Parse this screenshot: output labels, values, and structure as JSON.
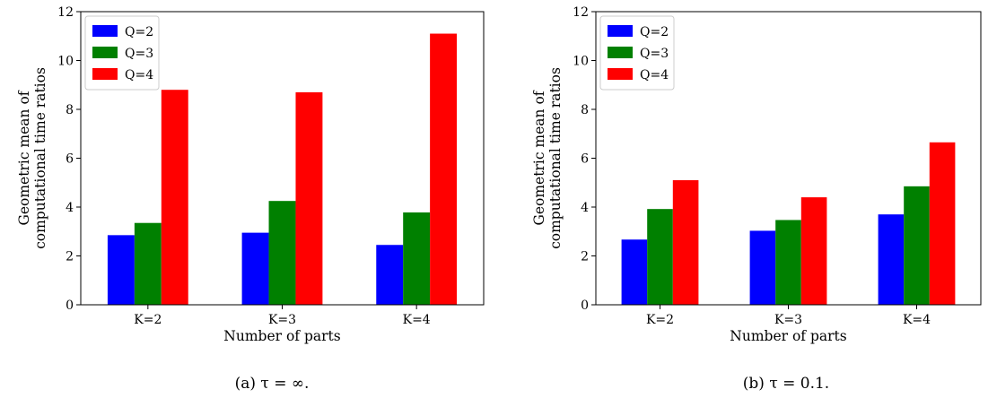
{
  "chart_data": [
    {
      "type": "bar",
      "caption": "(a) τ = ∞.",
      "xlabel": "Number of parts",
      "ylabel": [
        "Geometric mean of",
        "computational time ratios"
      ],
      "categories": [
        "K=2",
        "K=3",
        "K=4"
      ],
      "yticks": [
        "0",
        "2",
        "4",
        "6",
        "8",
        "10",
        "12"
      ],
      "ylim": [
        0,
        12
      ],
      "legend": "top-left",
      "series": [
        {
          "name": "Q=2",
          "color": "#0000ff",
          "values": [
            2.85,
            2.95,
            2.45
          ]
        },
        {
          "name": "Q=3",
          "color": "#008000",
          "values": [
            3.35,
            4.25,
            3.78
          ]
        },
        {
          "name": "Q=4",
          "color": "#ff0000",
          "values": [
            8.8,
            8.7,
            11.1
          ]
        }
      ]
    },
    {
      "type": "bar",
      "caption": "(b) τ = 0.1.",
      "xlabel": "Number of parts",
      "ylabel": [
        "Geometric mean of",
        "computational time ratios"
      ],
      "categories": [
        "K=2",
        "K=3",
        "K=4"
      ],
      "yticks": [
        "0",
        "2",
        "4",
        "6",
        "8",
        "10",
        "12"
      ],
      "ylim": [
        0,
        12
      ],
      "legend": "top-left",
      "series": [
        {
          "name": "Q=2",
          "color": "#0000ff",
          "values": [
            2.67,
            3.03,
            3.7
          ]
        },
        {
          "name": "Q=3",
          "color": "#008000",
          "values": [
            3.92,
            3.47,
            4.85
          ]
        },
        {
          "name": "Q=4",
          "color": "#ff0000",
          "values": [
            5.1,
            4.4,
            6.65
          ]
        }
      ]
    }
  ]
}
